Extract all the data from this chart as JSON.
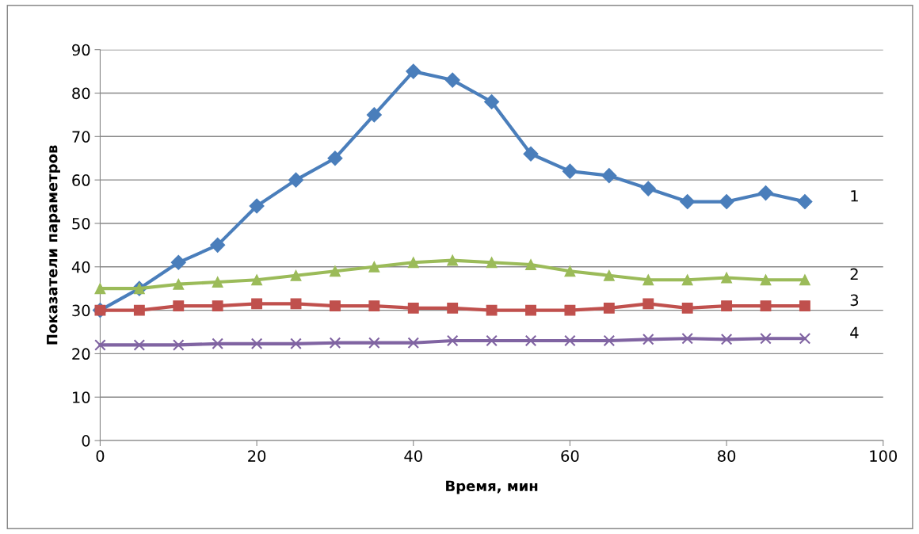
{
  "chart_data": {
    "type": "line",
    "xlabel": "Время, мин",
    "ylabel": "Показатели параметров",
    "x": [
      0,
      5,
      10,
      15,
      20,
      25,
      30,
      35,
      40,
      45,
      50,
      55,
      60,
      65,
      70,
      75,
      80,
      85,
      90
    ],
    "series": [
      {
        "name": "1",
        "color": "#4a7ebb",
        "marker": "diamond",
        "values": [
          30,
          35,
          41,
          45,
          54,
          60,
          65,
          75,
          85,
          83,
          78,
          66,
          62,
          61,
          58,
          55,
          55,
          57,
          55
        ]
      },
      {
        "name": "2",
        "color": "#9bbb59",
        "marker": "triangle",
        "values": [
          35,
          35,
          36,
          36.5,
          37,
          38,
          39,
          40,
          41,
          41.5,
          41,
          40.5,
          39,
          38,
          37,
          37,
          37.5,
          37,
          37
        ]
      },
      {
        "name": "3",
        "color": "#c0504d",
        "marker": "square",
        "values": [
          30,
          30,
          31,
          31,
          31.5,
          31.5,
          31,
          31,
          30.5,
          30.5,
          30,
          30,
          30,
          30.5,
          31.5,
          30.5,
          31,
          31,
          31
        ]
      },
      {
        "name": "4",
        "color": "#8064a2",
        "marker": "cross",
        "values": [
          22,
          22,
          22,
          22.3,
          22.3,
          22.3,
          22.5,
          22.5,
          22.5,
          23,
          23,
          23,
          23,
          23,
          23.3,
          23.5,
          23.3,
          23.5,
          23.5
        ]
      }
    ],
    "xlim": [
      0,
      100
    ],
    "xticks": [
      0,
      20,
      40,
      60,
      80,
      100
    ],
    "ylim": [
      0,
      90
    ],
    "yticks": [
      0,
      10,
      20,
      30,
      40,
      50,
      60,
      70,
      80,
      90
    ],
    "grid": "y",
    "line_style": "solid"
  }
}
